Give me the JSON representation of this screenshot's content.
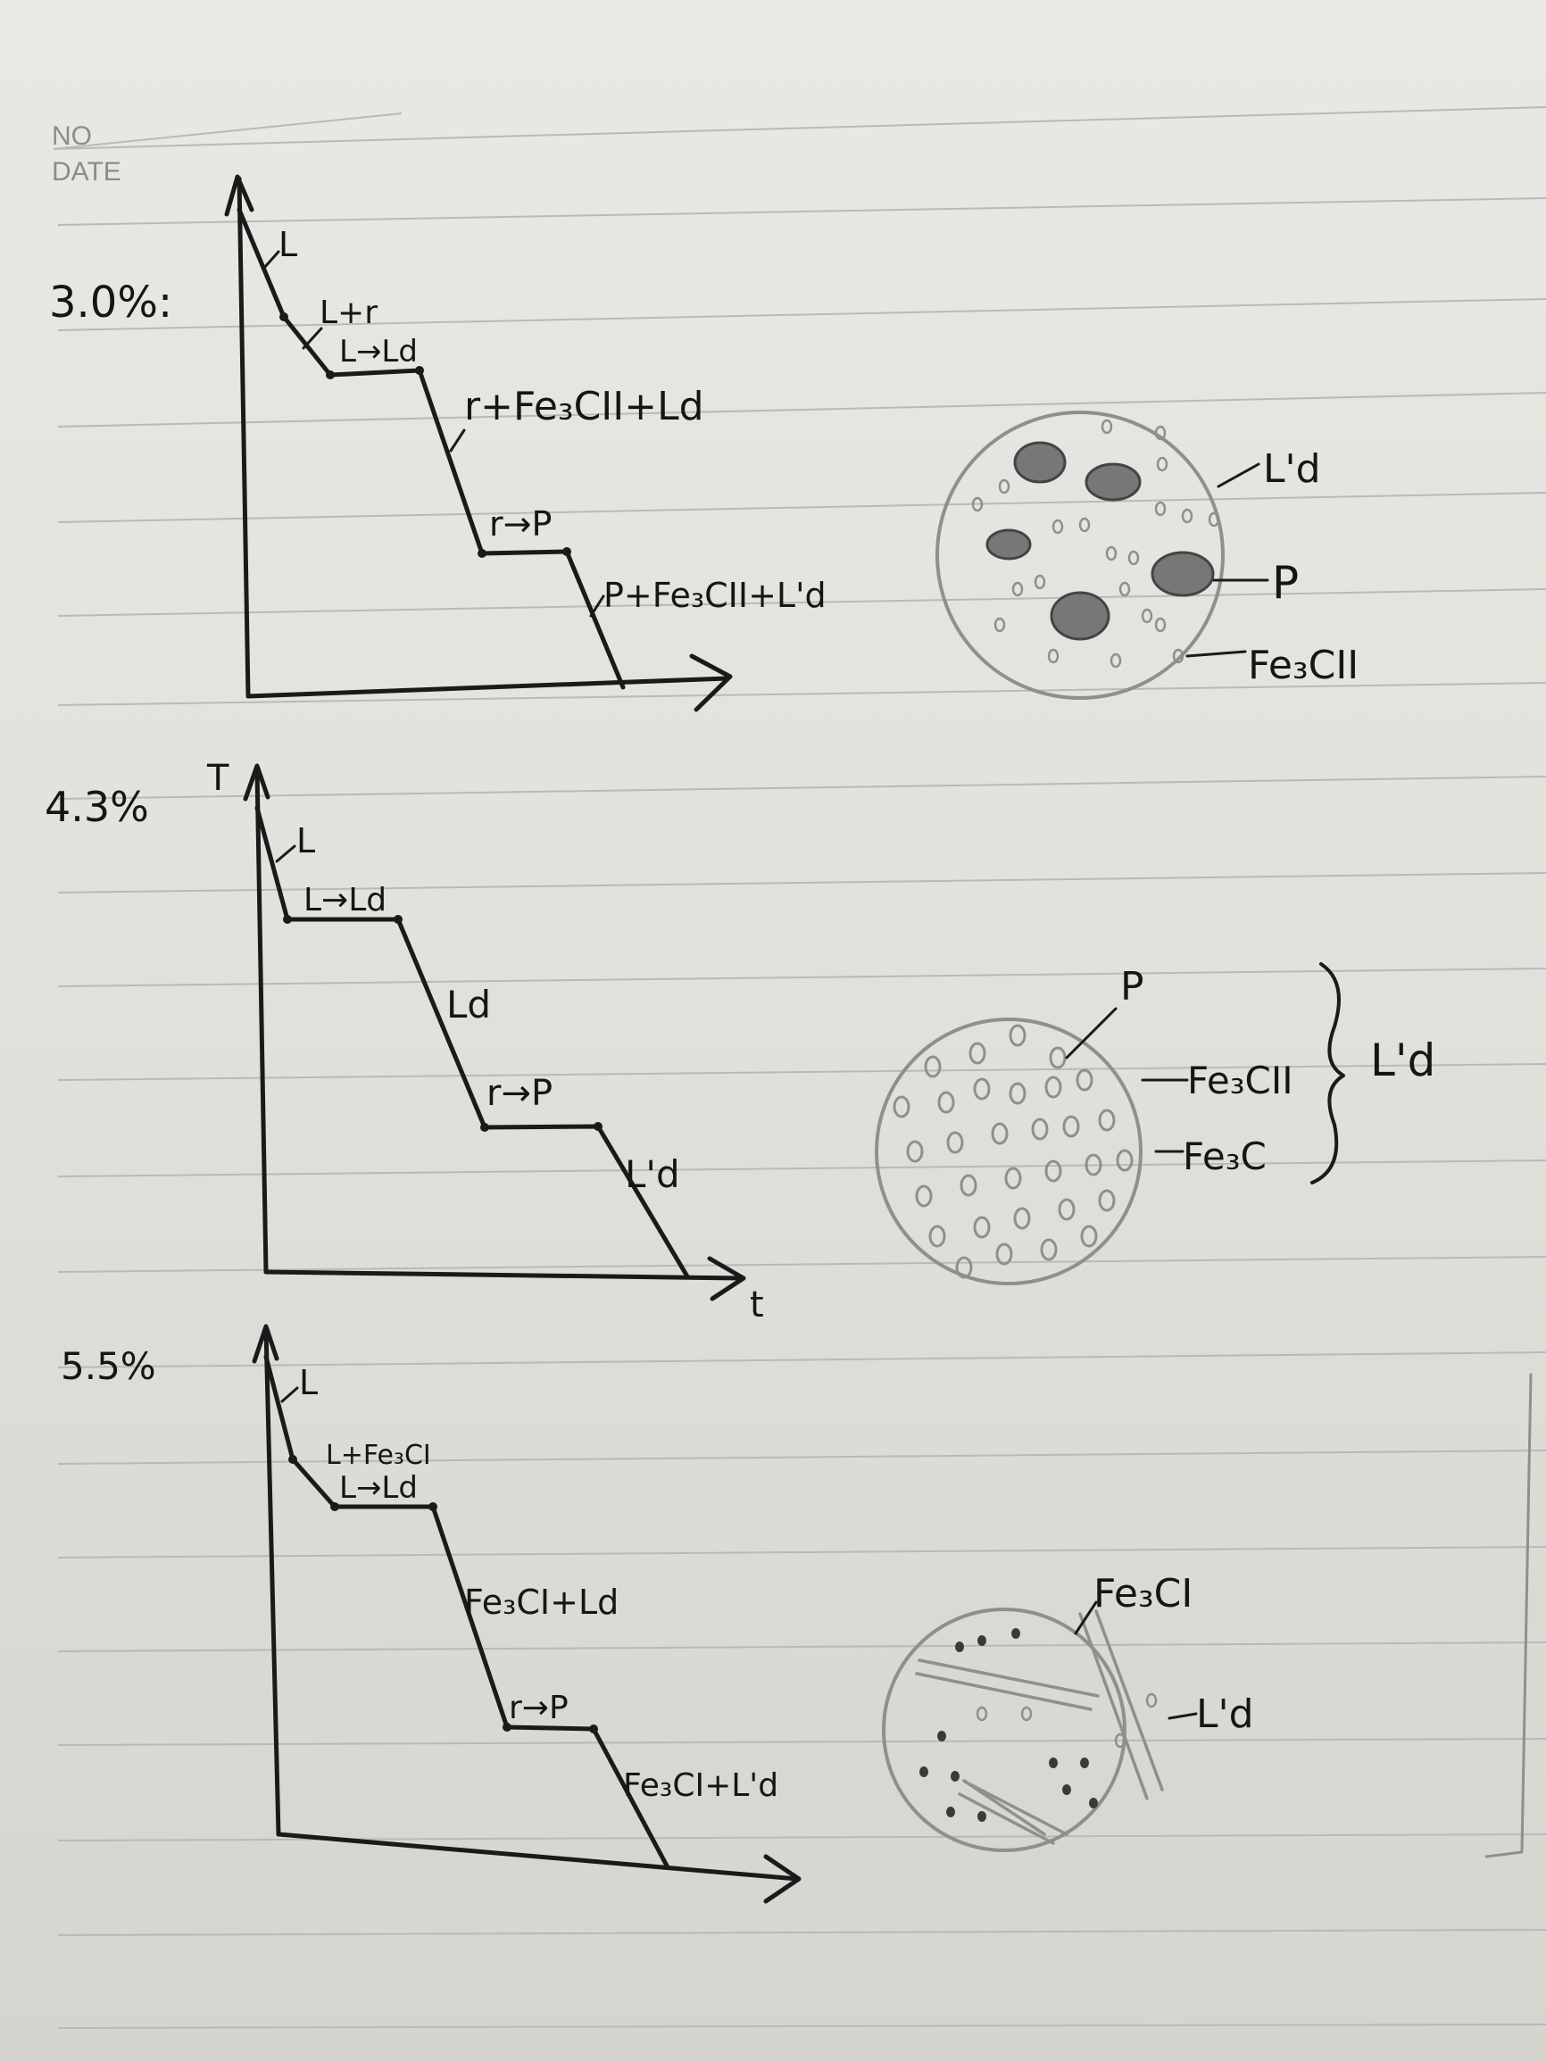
{
  "header": {
    "no_label": "NO",
    "date_label": "DATE"
  },
  "diagrams": [
    {
      "composition": "3.0%:",
      "curve_labels": [
        "L",
        "L+r",
        "L→Ld",
        "r+Fe₃CII+Ld",
        "r→P",
        "P+Fe₃CII+L'd"
      ],
      "micro_labels": [
        "L'd",
        "P",
        "Fe₃CII"
      ]
    },
    {
      "composition": "4.3%",
      "y_axis": "T",
      "x_axis": "t",
      "curve_labels": [
        "L",
        "L→Ld",
        "Ld",
        "r→P",
        "L'd"
      ],
      "micro_labels": [
        "P",
        "Fe₃CII",
        "Fe₃C",
        "L'd"
      ]
    },
    {
      "composition": "5.5%",
      "curve_labels": [
        "L",
        "L+Fe₃CI",
        "L→Ld",
        "Fe₃CI+Ld",
        "r→P",
        "Fe₃CI+L'd"
      ],
      "micro_labels": [
        "Fe₃CI",
        "L'd"
      ]
    }
  ]
}
